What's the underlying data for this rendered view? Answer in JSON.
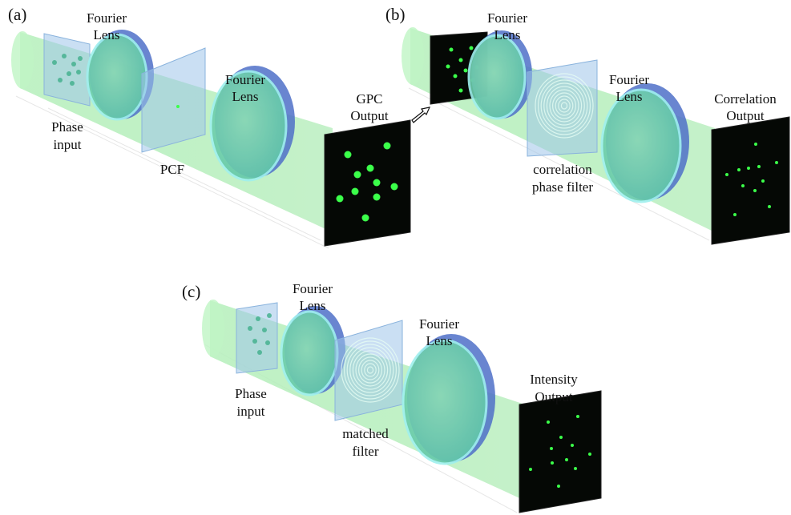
{
  "panels": [
    {
      "label": "(a)",
      "parts": [
        {
          "lines": [
            "Fourier",
            "Lens"
          ]
        },
        {
          "lines": [
            "Fourier",
            "Lens"
          ]
        },
        {
          "lines": [
            "Phase",
            "input"
          ]
        },
        {
          "lines": [
            "PCF"
          ]
        },
        {
          "lines": [
            "GPC",
            "Output"
          ]
        }
      ]
    },
    {
      "label": "(b)",
      "parts": [
        {
          "lines": [
            "Fourier",
            "Lens"
          ]
        },
        {
          "lines": [
            "Fourier",
            "Lens"
          ]
        },
        {
          "lines": [
            "correlation",
            "phase filter"
          ]
        },
        {
          "lines": [
            "Correlation",
            "Output"
          ]
        }
      ]
    },
    {
      "label": "(c)",
      "parts": [
        {
          "lines": [
            "Fourier",
            "Lens"
          ]
        },
        {
          "lines": [
            "Fourier",
            "Lens"
          ]
        },
        {
          "lines": [
            "Phase",
            "input"
          ]
        },
        {
          "lines": [
            "matched",
            "filter"
          ]
        },
        {
          "lines": [
            "Intensity",
            "Output"
          ]
        }
      ]
    }
  ]
}
